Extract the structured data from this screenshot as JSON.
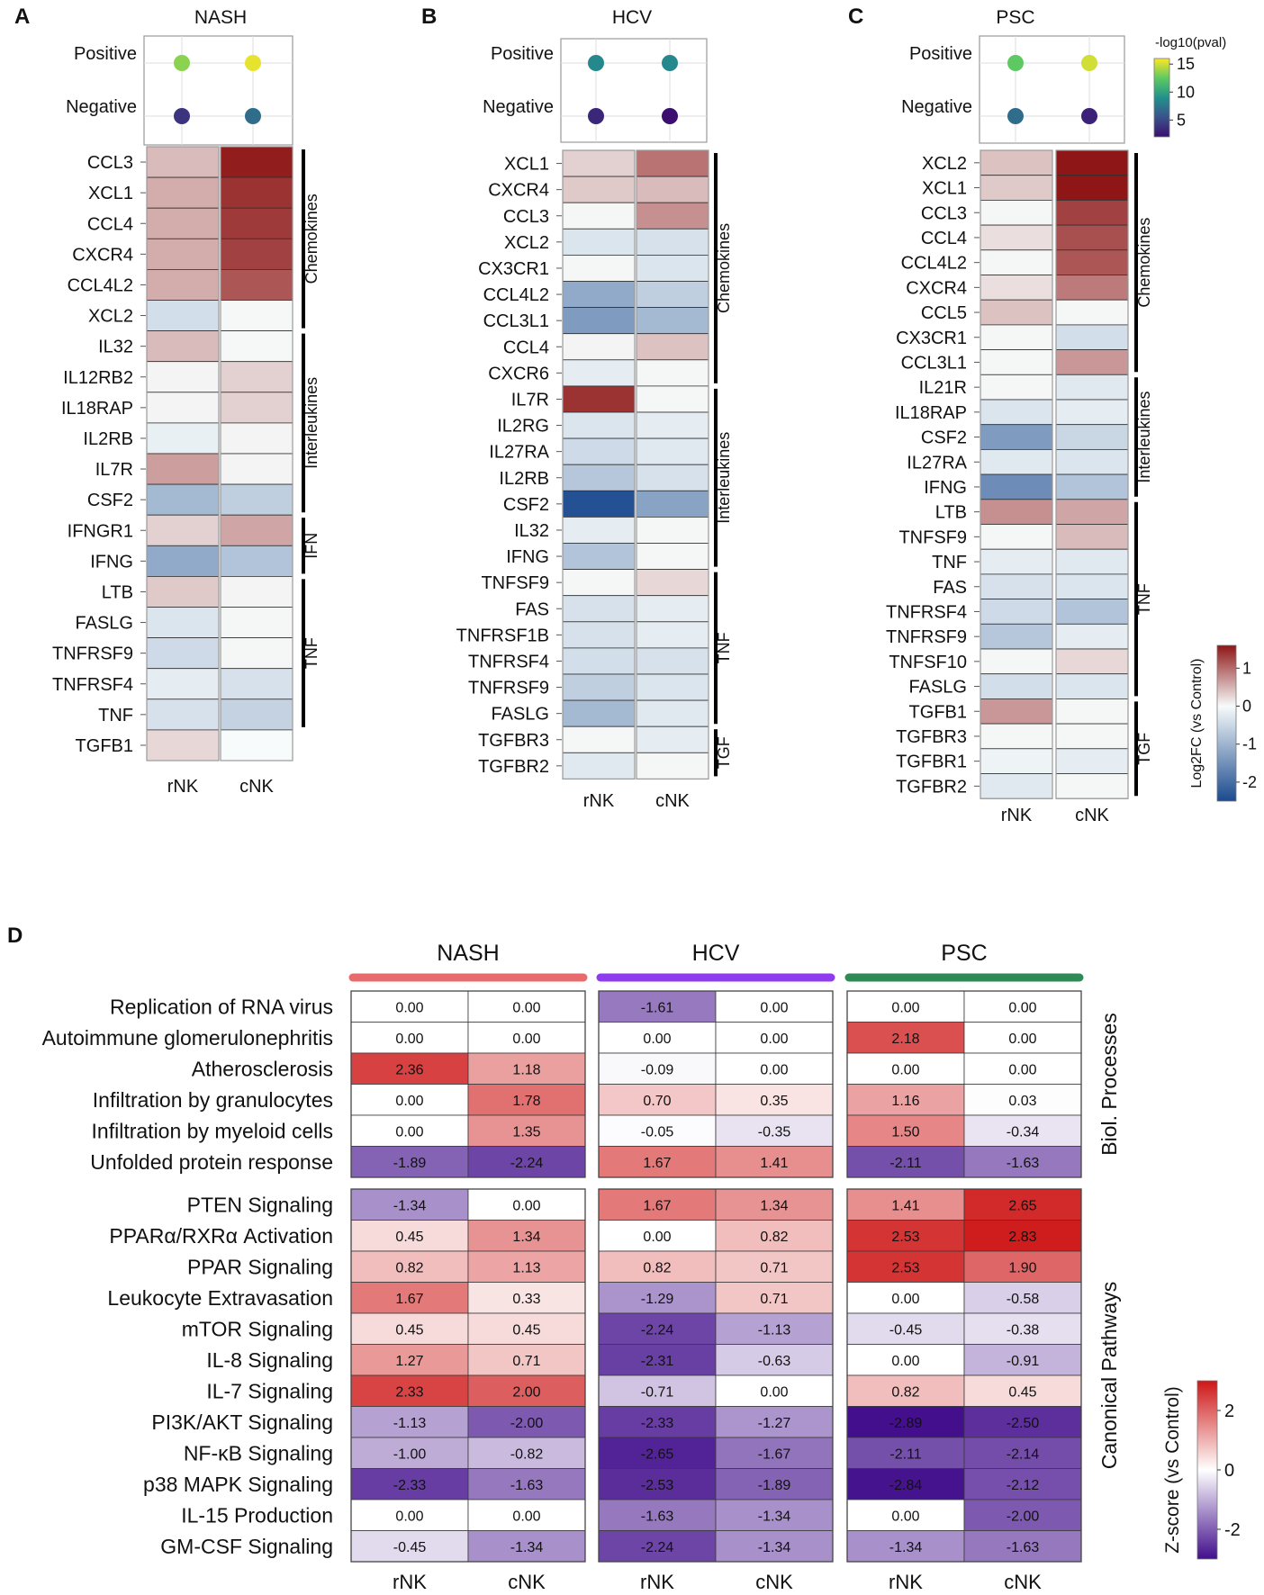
{
  "chart_data": [
    {
      "type": "heatmap",
      "panel": "A",
      "title": "NASH",
      "columns": [
        "rNK",
        "cNK"
      ],
      "pvalue_dots": {
        "rows": [
          "Positive",
          "Negative"
        ],
        "neglog10_pval": [
          [
            13.5,
            15.5
          ],
          [
            4.0,
            7.0
          ]
        ]
      },
      "genes": [
        "CCL3",
        "XCL1",
        "CCL4",
        "CXCR4",
        "CCL4L2",
        "XCL2",
        "IL32",
        "IL12RB2",
        "IL18RAP",
        "IL2RB",
        "IL7R",
        "CSF2",
        "IFNGR1",
        "IFNG",
        "LTB",
        "FASLG",
        "TNFRSF9",
        "TNFRSF4",
        "TNF",
        "TGFB1"
      ],
      "log2fc": [
        [
          0.45,
          1.55
        ],
        [
          0.55,
          1.4
        ],
        [
          0.55,
          1.35
        ],
        [
          0.55,
          1.3
        ],
        [
          0.55,
          1.15
        ],
        [
          -0.4,
          0.02
        ],
        [
          0.45,
          0.02
        ],
        [
          0.05,
          0.3
        ],
        [
          0.05,
          0.3
        ],
        [
          -0.15,
          0.05
        ],
        [
          0.65,
          0.05
        ],
        [
          -0.9,
          -0.6
        ],
        [
          0.3,
          0.6
        ],
        [
          -1.1,
          -0.75
        ],
        [
          0.35,
          0.05
        ],
        [
          -0.3,
          0.03
        ],
        [
          -0.45,
          0.03
        ],
        [
          -0.2,
          -0.35
        ],
        [
          -0.35,
          -0.55
        ],
        [
          0.25,
          0.0
        ]
      ],
      "categories": [
        {
          "name": "Chemokines"
        },
        {
          "name": "Interleukines"
        },
        {
          "name": "IFN"
        },
        {
          "name": "TNF"
        }
      ]
    },
    {
      "type": "heatmap",
      "panel": "B",
      "title": "HCV",
      "columns": [
        "rNK",
        "cNK"
      ],
      "pvalue_dots": {
        "rows": [
          "Positive",
          "Negative"
        ],
        "neglog10_pval": [
          [
            8.5,
            8.5
          ],
          [
            3.2,
            1.5
          ]
        ]
      },
      "genes": [
        "XCL1",
        "CXCR4",
        "CCL3",
        "XCL2",
        "CX3CR1",
        "CCL4L2",
        "CCL3L1",
        "CCL4",
        "CXCR6",
        "IL7R",
        "IL2RG",
        "IL27RA",
        "IL2RB",
        "CSF2",
        "IL32",
        "IFNG",
        "TNFSF9",
        "FAS",
        "TNFRSF1B",
        "TNFRSF4",
        "TNFRSF9",
        "FASLG",
        "TGFBR3",
        "TGFBR2"
      ],
      "log2fc": [
        [
          0.3,
          0.95
        ],
        [
          0.35,
          0.45
        ],
        [
          0.03,
          0.75
        ],
        [
          -0.3,
          -0.35
        ],
        [
          0.03,
          -0.3
        ],
        [
          -1.1,
          -0.6
        ],
        [
          -1.3,
          -0.9
        ],
        [
          0.05,
          0.4
        ],
        [
          -0.2,
          0.03
        ],
        [
          1.4,
          0.03
        ],
        [
          -0.3,
          -0.2
        ],
        [
          -0.45,
          -0.25
        ],
        [
          -0.7,
          -0.35
        ],
        [
          -2.3,
          -1.2
        ],
        [
          -0.2,
          0.03
        ],
        [
          -0.75,
          0.03
        ],
        [
          0.03,
          0.25
        ],
        [
          -0.35,
          -0.2
        ],
        [
          -0.35,
          -0.2
        ],
        [
          -0.4,
          -0.35
        ],
        [
          -0.6,
          -0.3
        ],
        [
          -0.9,
          -0.25
        ],
        [
          0.03,
          -0.2
        ],
        [
          -0.25,
          0.03
        ]
      ],
      "categories": [
        {
          "name": "Chemokines"
        },
        {
          "name": "Interleukines"
        },
        {
          "name": "TNF"
        },
        {
          "name": "TGF"
        }
      ]
    },
    {
      "type": "heatmap",
      "panel": "C",
      "title": "PSC",
      "columns": [
        "rNK",
        "cNK"
      ],
      "pvalue_dots": {
        "rows": [
          "Positive",
          "Negative"
        ],
        "neglog10_pval": [
          [
            12.5,
            15.0
          ],
          [
            7.0,
            3.0
          ]
        ]
      },
      "genes": [
        "XCL2",
        "XCL1",
        "CCL3",
        "CCL4",
        "CCL4L2",
        "CXCR4",
        "CCL5",
        "CX3CR1",
        "CCL3L1",
        "IL21R",
        "IL18RAP",
        "CSF2",
        "IL27RA",
        "IFNG",
        "LTB",
        "TNFSF9",
        "TNF",
        "FAS",
        "TNFRSF4",
        "TNFRSF9",
        "TNFSF10",
        "FASLG",
        "TGFB1",
        "TGFBR3",
        "TGFBR1",
        "TGFBR2"
      ],
      "log2fc": [
        [
          0.4,
          1.6
        ],
        [
          0.35,
          1.6
        ],
        [
          0.03,
          1.3
        ],
        [
          0.2,
          1.2
        ],
        [
          0.03,
          1.15
        ],
        [
          0.2,
          0.9
        ],
        [
          0.4,
          0.03
        ],
        [
          0.03,
          -0.4
        ],
        [
          0.03,
          0.7
        ],
        [
          0.03,
          -0.25
        ],
        [
          -0.3,
          -0.2
        ],
        [
          -1.3,
          -0.5
        ],
        [
          -0.25,
          -0.3
        ],
        [
          -1.5,
          -0.75
        ],
        [
          0.75,
          0.6
        ],
        [
          0.03,
          0.45
        ],
        [
          -0.2,
          -0.25
        ],
        [
          -0.35,
          -0.3
        ],
        [
          -0.45,
          -0.75
        ],
        [
          -0.7,
          -0.2
        ],
        [
          0.03,
          0.25
        ],
        [
          -0.4,
          -0.3
        ],
        [
          0.7,
          0.03
        ],
        [
          0.03,
          0.03
        ],
        [
          -0.1,
          -0.2
        ],
        [
          -0.25,
          0.03
        ]
      ],
      "categories": [
        {
          "name": "Chemokines"
        },
        {
          "name": "Interleukines"
        },
        {
          "name": "TNF"
        },
        {
          "name": "TGF"
        }
      ]
    },
    {
      "type": "heatmap",
      "panel": "D",
      "columns": [
        "rNK",
        "cNK"
      ],
      "diseases": [
        "NASH",
        "HCV",
        "PSC"
      ],
      "disease_colors": [
        "#e96a6d",
        "#8f3cf0",
        "#2e8b57"
      ],
      "groups": [
        {
          "name": "Biol. Processes",
          "rows": [
            "Replication of RNA virus",
            "Autoimmune glomerulonephritis",
            "Atherosclerosis",
            "Infiltration by granulocytes",
            "Infiltration by myeloid cells",
            "Unfolded protein response"
          ],
          "values": [
            [
              "0.00",
              "0.00",
              "-1.61",
              "0.00",
              "0.00",
              "0.00"
            ],
            [
              "0.00",
              "0.00",
              "0.00",
              "0.00",
              "2.18",
              "0.00"
            ],
            [
              "2.36",
              "1.18",
              "-0.09",
              "0.00",
              "0.00",
              "0.00"
            ],
            [
              "0.00",
              "1.78",
              "0.70",
              "0.35",
              "1.16",
              "0.03"
            ],
            [
              "0.00",
              "1.35",
              "-0.05",
              "-0.35",
              "1.50",
              "-0.34"
            ],
            [
              "-1.89",
              "-2.24",
              "1.67",
              "1.41",
              "-2.11",
              "-1.63"
            ]
          ]
        },
        {
          "name": "Canonical Pathways",
          "rows": [
            "PTEN Signaling",
            "PPARα/RXRα Activation",
            "PPAR Signaling",
            "Leukocyte Extravasation",
            "mTOR Signaling",
            "IL-8 Signaling",
            "IL-7 Signaling",
            "PI3K/AKT Signaling",
            "NF-κB Signaling",
            "p38 MAPK Signaling",
            "IL-15 Production",
            "GM-CSF Signaling"
          ],
          "values": [
            [
              "-1.34",
              "0.00",
              "1.67",
              "1.34",
              "1.41",
              "2.65"
            ],
            [
              "0.45",
              "1.34",
              "0.00",
              "0.82",
              "2.53",
              "2.83"
            ],
            [
              "0.82",
              "1.13",
              "0.82",
              "0.71",
              "2.53",
              "1.90"
            ],
            [
              "1.67",
              "0.33",
              "-1.29",
              "0.71",
              "0.00",
              "-0.58"
            ],
            [
              "0.45",
              "0.45",
              "-2.24",
              "-1.13",
              "-0.45",
              "-0.38"
            ],
            [
              "1.27",
              "0.71",
              "-2.31",
              "-0.63",
              "0.00",
              "-0.91"
            ],
            [
              "2.33",
              "2.00",
              "-0.71",
              "0.00",
              "0.82",
              "0.45"
            ],
            [
              "-1.13",
              "-2.00",
              "-2.33",
              "-1.27",
              "-2.89",
              "-2.50"
            ],
            [
              "-1.00",
              "-0.82",
              "-2.65",
              "-1.67",
              "-2.11",
              "-2.14"
            ],
            [
              "-2.33",
              "-1.63",
              "-2.53",
              "-1.89",
              "-2.84",
              "-2.12"
            ],
            [
              "0.00",
              "0.00",
              "-1.63",
              "-1.34",
              "0.00",
              "-2.00"
            ],
            [
              "-0.45",
              "-1.34",
              "-2.24",
              "-1.34",
              "-1.34",
              "-1.63"
            ]
          ]
        }
      ]
    }
  ],
  "legends": {
    "pval": {
      "title": "-log10(pval)",
      "ticks": [
        "15",
        "10",
        "5"
      ],
      "range": [
        2,
        16
      ]
    },
    "log2fc": {
      "title": "Log2FC (vs Control)",
      "ticks": [
        "1",
        "0",
        "-1",
        "-2"
      ],
      "range": [
        -2.5,
        1.6
      ]
    },
    "zscore": {
      "title": "Z-score (vs Control)",
      "ticks": [
        "2",
        "0",
        "-2"
      ],
      "range": [
        -3,
        3
      ]
    }
  }
}
